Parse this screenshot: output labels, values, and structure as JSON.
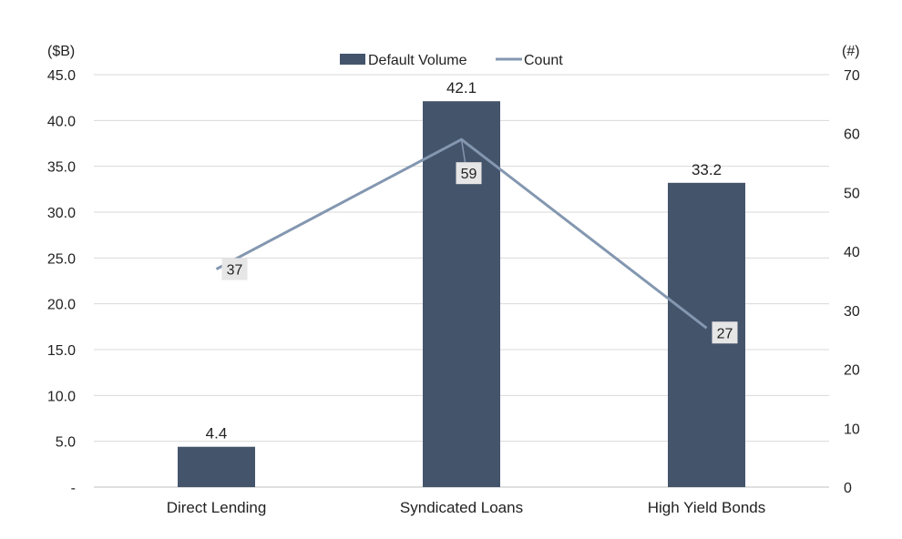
{
  "chart_data": {
    "type": "bar",
    "categories": [
      "Direct Lending",
      "Syndicated Loans",
      "High Yield Bonds"
    ],
    "series": [
      {
        "name": "Default Volume",
        "type": "bar",
        "axis": "left",
        "values": [
          4.4,
          42.1,
          33.2
        ],
        "labels": [
          "4.4",
          "42.1",
          "33.2"
        ],
        "color": "#44546a"
      },
      {
        "name": "Count",
        "type": "line",
        "axis": "right",
        "values": [
          37,
          59,
          27
        ],
        "labels": [
          "37",
          "59",
          "27"
        ],
        "color": "#8497b0"
      }
    ],
    "y_left": {
      "unit_label": "($B)",
      "ylim": [
        0,
        45
      ],
      "ticks": [
        "-",
        "5.0",
        "10.0",
        "15.0",
        "20.0",
        "25.0",
        "30.0",
        "35.0",
        "40.0",
        "45.0"
      ]
    },
    "y_right": {
      "unit_label": "(#)",
      "ylim": [
        0,
        70
      ],
      "ticks": [
        "0",
        "10",
        "20",
        "30",
        "40",
        "50",
        "60",
        "70"
      ]
    },
    "grid": true,
    "legend": "top-center",
    "label_box_color": "#e7e6e6"
  }
}
